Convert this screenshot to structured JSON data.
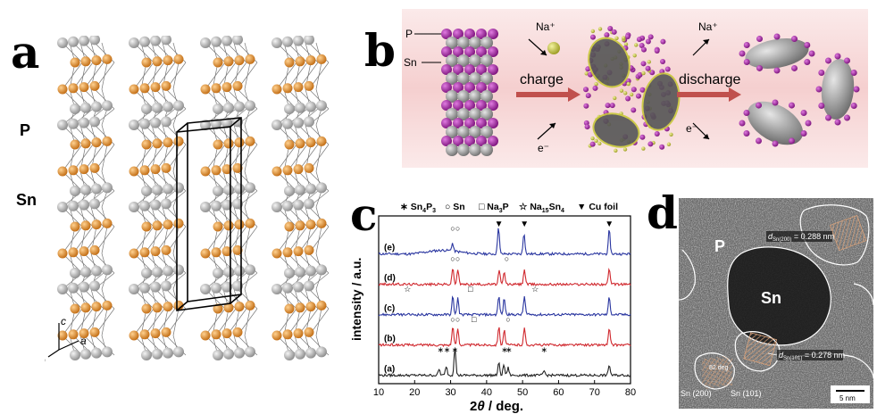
{
  "panels": {
    "a": {
      "letter": "a",
      "label_p": "P",
      "label_sn": "Sn",
      "axes": {
        "c": "c",
        "b": "b",
        "a": "a"
      },
      "colors": {
        "p": "#e8962e",
        "sn": "#b9b9b9",
        "bond": "#7a7a7a"
      }
    },
    "b": {
      "letter": "b",
      "label_p": "P",
      "label_sn": "Sn",
      "na_top_left": "Na⁺",
      "na_top_right": "Na⁺",
      "e_left": "e⁻",
      "e_right": "e⁻",
      "charge": "charge",
      "discharge": "discharge",
      "colors": {
        "bg": "#f6d6d6",
        "arrow": "#c0504d",
        "p": "#a020a0",
        "sn": "#8c8c8c",
        "na": "#c8c83a"
      }
    },
    "c": {
      "letter": "c",
      "legend": {
        "sn4p3_sym": "∗",
        "sn4p3_a": "Sn",
        "sn4p3_b": "4",
        "sn4p3_c": "P",
        "sn4p3_d": "3",
        "sn_sym": "○",
        "sn": "Sn",
        "na3p_sym": "□",
        "na3p_a": "Na",
        "na3p_b": "3",
        "na3p_c": "P",
        "na15sn4_sym": "☆",
        "na15sn4_a": "Na",
        "na15sn4_b": "15",
        "na15sn4_c": "Sn",
        "na15sn4_d": "4",
        "cu_sym": "▼",
        "cu": "Cu foil"
      },
      "ylabel": "intensity / a.u.",
      "xlabel_a": "2",
      "xlabel_theta": "θ",
      "xlabel_b": " / deg.",
      "curve_labels": [
        "(e)",
        "(d)",
        "(c)",
        "(b)",
        "(a)"
      ]
    },
    "d": {
      "letter": "d",
      "label_p": "P",
      "label_sn": "Sn",
      "d1_prefix": "d",
      "d1_sub": "Sn(200)",
      "d1_value": " = 0.288 nm",
      "d2_prefix": "d",
      "d2_sub": "Sn(101)",
      "d2_value": " = 0.278 nm",
      "angle": "82 deg",
      "sn200": "Sn (200)",
      "sn101": "Sn (101)",
      "scale": "5 nm"
    }
  },
  "chart_data": {
    "type": "line",
    "xlabel": "2θ / deg.",
    "ylabel": "intensity / a.u.",
    "xlim": [
      10,
      80
    ],
    "x_ticks": [
      10,
      20,
      30,
      40,
      50,
      60,
      70,
      80
    ],
    "series": [
      {
        "label": "(e)",
        "color": "#2a36a0",
        "baseline": 4.1,
        "peaks": [
          [
            43.3,
            0.9
          ],
          [
            50.4,
            0.7
          ],
          [
            74.1,
            0.8
          ],
          [
            30.5,
            0.25
          ]
        ]
      },
      {
        "label": "(d)",
        "color": "#d0282e",
        "baseline": 3.1,
        "peaks": [
          [
            30.6,
            0.55
          ],
          [
            32.0,
            0.5
          ],
          [
            43.5,
            0.45
          ],
          [
            44.9,
            0.4
          ],
          [
            50.5,
            0.5
          ],
          [
            74.1,
            0.5
          ]
        ]
      },
      {
        "label": "(c)",
        "color": "#2a36a0",
        "baseline": 2.1,
        "peaks": [
          [
            30.6,
            0.6
          ],
          [
            32.0,
            0.55
          ],
          [
            43.4,
            0.6
          ],
          [
            44.9,
            0.55
          ],
          [
            50.5,
            0.6
          ],
          [
            74.1,
            0.6
          ]
        ]
      },
      {
        "label": "(b)",
        "color": "#d0282e",
        "baseline": 1.1,
        "peaks": [
          [
            30.6,
            0.6
          ],
          [
            32.0,
            0.55
          ],
          [
            43.4,
            0.6
          ],
          [
            44.9,
            0.5
          ],
          [
            50.5,
            0.55
          ],
          [
            74.1,
            0.55
          ]
        ]
      },
      {
        "label": "(a)",
        "color": "#222222",
        "baseline": 0.1,
        "peaks": [
          [
            26.8,
            0.2
          ],
          [
            28.8,
            0.3
          ],
          [
            31.2,
            0.95
          ],
          [
            43.4,
            0.4
          ],
          [
            44.8,
            0.35
          ],
          [
            46.0,
            0.25
          ],
          [
            56.0,
            0.15
          ],
          [
            74.1,
            0.35
          ]
        ]
      }
    ],
    "markers": [
      {
        "symbol": "▼",
        "x": 43.4,
        "row": "top"
      },
      {
        "symbol": "▼",
        "x": 50.5,
        "row": "top"
      },
      {
        "symbol": "▼",
        "x": 74.1,
        "row": "top"
      },
      {
        "symbol": "○",
        "x": 30.6,
        "row": "(e)"
      },
      {
        "symbol": "○",
        "x": 32.0,
        "row": "(e)"
      },
      {
        "symbol": "○",
        "x": 30.6,
        "row": "(d)"
      },
      {
        "symbol": "○",
        "x": 32.0,
        "row": "(d)"
      },
      {
        "symbol": "○",
        "x": 45.6,
        "row": "(d)"
      },
      {
        "symbol": "☆",
        "x": 18.0,
        "row": "(c)"
      },
      {
        "symbol": "□",
        "x": 35.5,
        "row": "(c)"
      },
      {
        "symbol": "☆",
        "x": 53.5,
        "row": "(c)"
      },
      {
        "symbol": "○",
        "x": 30.6,
        "row": "(b)"
      },
      {
        "symbol": "○",
        "x": 32.0,
        "row": "(b)"
      },
      {
        "symbol": "□",
        "x": 36.5,
        "row": "(b)"
      },
      {
        "symbol": "○",
        "x": 46.0,
        "row": "(b)"
      },
      {
        "symbol": "∗",
        "x": 27.2,
        "row": "(a)"
      },
      {
        "symbol": "∗",
        "x": 29.0,
        "row": "(a)"
      },
      {
        "symbol": "∗",
        "x": 31.2,
        "row": "(a)"
      },
      {
        "symbol": "∗",
        "x": 45.0,
        "row": "(a)"
      },
      {
        "symbol": "∗",
        "x": 46.2,
        "row": "(a)"
      },
      {
        "symbol": "∗",
        "x": 56.0,
        "row": "(a)"
      }
    ]
  }
}
